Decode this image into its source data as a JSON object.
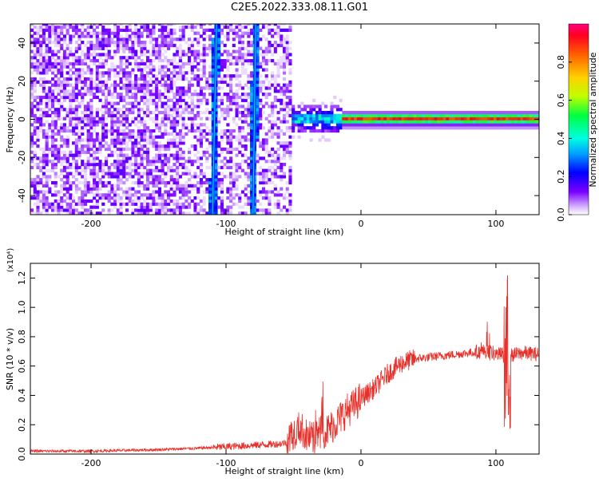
{
  "figure": {
    "title": "C2E5.2022.333.08.11.G01"
  },
  "colorbar": {
    "label": "Normalized spectral amplitude",
    "ticks": [
      "0.0",
      "0.2",
      "0.4",
      "0.6",
      "0.8"
    ],
    "range": [
      0,
      1
    ]
  },
  "chart_data": [
    {
      "type": "heatmap",
      "title": "C2E5.2022.333.08.11.G01",
      "xlabel": "Height of straight line (km)",
      "ylabel": "Frequency (Hz)",
      "xlim": [
        -245,
        132
      ],
      "ylim": [
        -50,
        50
      ],
      "xticks": [
        -200,
        -100,
        0,
        100
      ],
      "yticks": [
        -40,
        -20,
        0,
        20,
        40
      ],
      "xtick_labels": [
        "-200",
        "-100",
        "0",
        "100"
      ],
      "ytick_labels": [
        "-40",
        "-20",
        "0",
        "20",
        "40"
      ],
      "colormap": "rainbow (violet to red)",
      "features": {
        "noise_region_x": [
          -245,
          -52
        ],
        "diagonal_streaks": [
          {
            "x_at_top": -107,
            "x_at_bottom": -110
          },
          {
            "x_at_top": -78,
            "x_at_bottom": -80
          }
        ],
        "signal_band_center_hz": 0,
        "signal_band_x": [
          -55,
          132
        ]
      }
    },
    {
      "type": "line",
      "xlabel": "Height of straight line (km)",
      "ylabel": "SNR (10 * v/v)",
      "yscale_label": "(x10⁴)",
      "xlim": [
        -245,
        132
      ],
      "ylim": [
        0,
        1.3
      ],
      "xticks": [
        -200,
        -100,
        0,
        100
      ],
      "yticks": [
        0.0,
        0.2,
        0.4,
        0.6,
        0.8,
        1.0,
        1.2
      ],
      "xtick_labels": [
        "-200",
        "-100",
        "0",
        "100"
      ],
      "ytick_labels": [
        "0.0",
        "0.2",
        "0.4",
        "0.6",
        "0.8",
        "1.0",
        "1.2"
      ],
      "line_color": "#e8302a",
      "series": [
        {
          "x": [
            -245,
            -200,
            -150,
            -120,
            -100,
            -80,
            -60,
            -55,
            -50,
            -45,
            -40,
            -35,
            -30,
            -25,
            -20,
            -15,
            -10,
            -5,
            0,
            10,
            20,
            30,
            40,
            50,
            60,
            70,
            80,
            90,
            95,
            100,
            105,
            108,
            110,
            115,
            120,
            132
          ],
          "values": [
            0.02,
            0.02,
            0.03,
            0.04,
            0.05,
            0.06,
            0.07,
            0.08,
            0.15,
            0.18,
            0.12,
            0.1,
            0.15,
            0.16,
            0.2,
            0.25,
            0.3,
            0.33,
            0.38,
            0.45,
            0.55,
            0.62,
            0.65,
            0.66,
            0.67,
            0.68,
            0.69,
            0.7,
            0.7,
            0.68,
            0.68,
            0.6,
            0.67,
            0.68,
            0.69,
            0.68
          ]
        }
      ]
    }
  ]
}
